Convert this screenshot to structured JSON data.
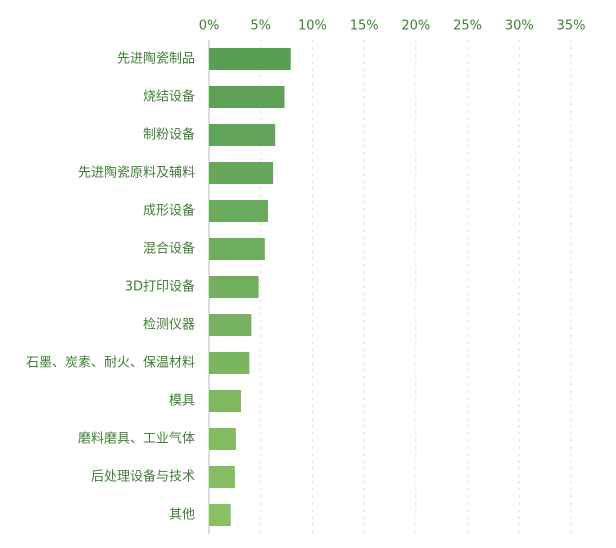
{
  "chart_data": {
    "type": "bar",
    "orientation": "horizontal",
    "categories": [
      "先进陶瓷制品",
      "烧结设备",
      "制粉设备",
      "先进陶瓷原料及辅料",
      "成形设备",
      "混合设备",
      "3D打印设备",
      "检测仪器",
      "石墨、炭素、耐火、保温材料",
      "模具",
      "磨料磨具、工业气体",
      "后处理设备与技术",
      "其他"
    ],
    "values": [
      7.9,
      7.3,
      6.4,
      6.2,
      5.7,
      5.4,
      4.8,
      4.1,
      3.9,
      3.1,
      2.6,
      2.5,
      2.1
    ],
    "colors": [
      "#5a9e55",
      "#5ea157",
      "#62a459",
      "#66a75a",
      "#6aaa5c",
      "#6ead5d",
      "#72b05e",
      "#76b25f",
      "#7ab560",
      "#7eb861",
      "#82bb62",
      "#86bd63",
      "#8ac064"
    ],
    "xlim": [
      0,
      35
    ],
    "xticks": [
      {
        "value": 0,
        "label": "0%"
      },
      {
        "value": 5,
        "label": "5%"
      },
      {
        "value": 10,
        "label": "10%"
      },
      {
        "value": 15,
        "label": "15%"
      },
      {
        "value": 20,
        "label": "20%"
      },
      {
        "value": 25,
        "label": "25%"
      },
      {
        "value": 30,
        "label": "30%"
      },
      {
        "value": 35,
        "label": "35%"
      }
    ],
    "grid": true
  }
}
